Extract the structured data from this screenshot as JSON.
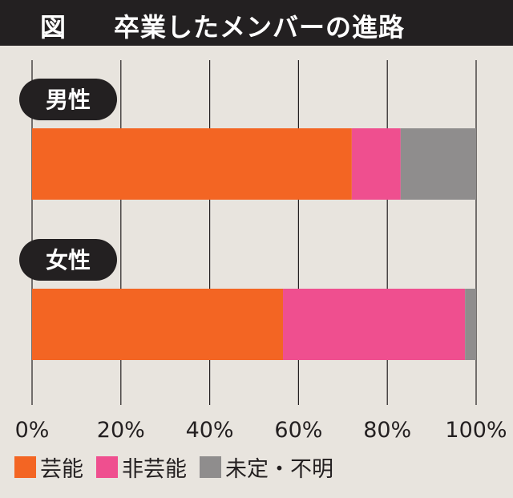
{
  "header": {
    "label": "図",
    "title": "卒業したメンバーの進路"
  },
  "colors": {
    "geino": "#f36523",
    "hi_geino": "#ef4f8f",
    "unknown": "#8f8d8d",
    "grid": "#231f20",
    "background": "#e8e4de"
  },
  "chart_data": {
    "type": "bar",
    "orientation": "horizontal",
    "stacked": true,
    "title": "卒業したメンバーの進路",
    "categories": [
      "男性",
      "女性"
    ],
    "series": [
      {
        "name": "芸能",
        "values": [
          72,
          56.5
        ]
      },
      {
        "name": "非芸能",
        "values": [
          11,
          41
        ]
      },
      {
        "name": "未定・不明",
        "values": [
          17,
          2.5
        ]
      }
    ],
    "x_ticks": [
      "0%",
      "20%",
      "40%",
      "60%",
      "80%",
      "100%"
    ],
    "xlim": [
      0,
      100
    ],
    "grid": true,
    "legend_position": "bottom-left"
  },
  "legend": [
    {
      "label": "芸能",
      "color": "#f36523"
    },
    {
      "label": "非芸能",
      "color": "#ef4f8f"
    },
    {
      "label": "未定・不明",
      "color": "#8f8d8d"
    }
  ]
}
